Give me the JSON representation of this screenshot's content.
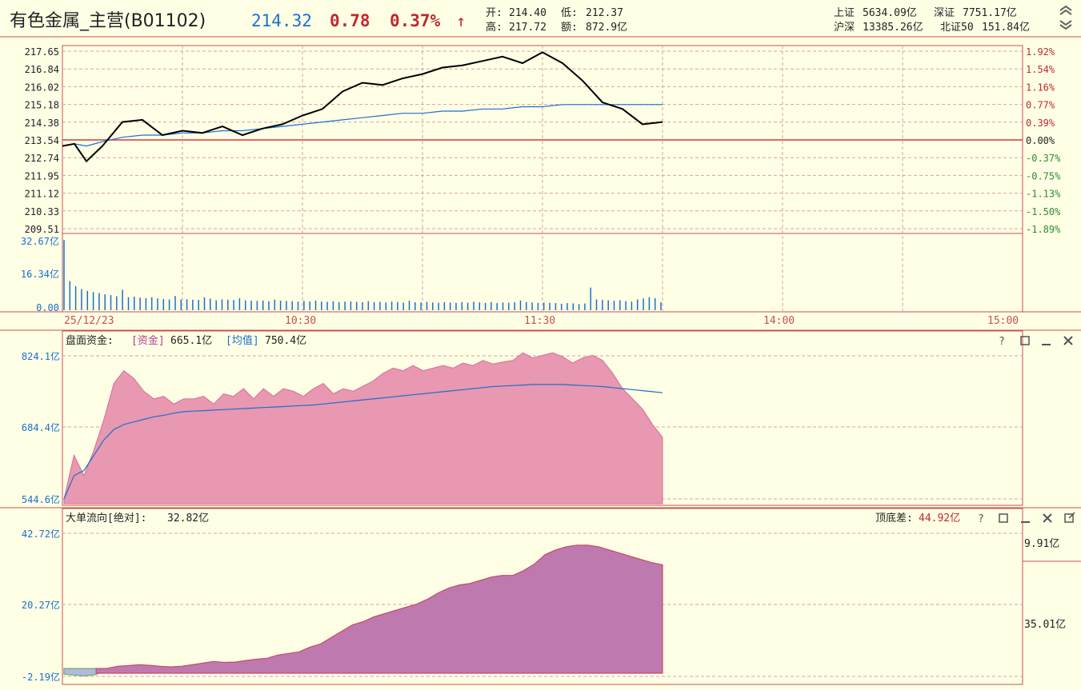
{
  "header": {
    "title": "有色金属_主营(B01102)",
    "price": "214.32",
    "change": "0.78",
    "change_pct": "0.37%",
    "arrow": "↑",
    "open_label": "开:",
    "open": "214.40",
    "low_label": "低:",
    "low": "212.37",
    "high_label": "高:",
    "high": "217.72",
    "amount_label": "额:",
    "amount": "872.9亿",
    "indices": [
      {
        "label": "上证",
        "value": "5634.09亿"
      },
      {
        "label": "深证",
        "value": "7751.17亿"
      },
      {
        "label": "沪深",
        "value": "13385.26亿"
      },
      {
        "label": "北证50",
        "value": "151.84亿"
      }
    ],
    "collapse_icon": "double-chevron-up-icon",
    "expand_icon": "double-chevron-down-icon"
  },
  "price_panel": {
    "left_ticks": [
      "217.65",
      "216.84",
      "216.02",
      "215.18",
      "214.38",
      "213.54",
      "212.74",
      "211.95",
      "211.12",
      "210.33",
      "209.51"
    ],
    "right_ticks": [
      "1.92%",
      "1.54%",
      "1.16%",
      "0.77%",
      "0.39%",
      "0.00%",
      "-0.37%",
      "-0.75%",
      "-1.13%",
      "-1.50%",
      "-1.89%"
    ],
    "prev_close": 213.54
  },
  "volume_panel": {
    "ticks": [
      "32.67亿",
      "16.34亿",
      "0.00"
    ]
  },
  "time_axis": {
    "date": "25/12/23",
    "labels": [
      "10:30",
      "11:30",
      "14:00",
      "15:00"
    ]
  },
  "fund_panel": {
    "label": "盘面资金:",
    "fund_tag": "[资金]",
    "fund_value": "665.1亿",
    "avg_tag": "[均值]",
    "avg_value": "750.4亿",
    "ticks": [
      "824.1亿",
      "684.4亿",
      "544.6亿"
    ],
    "icons": [
      "help-icon",
      "maximize-icon",
      "minimize-icon",
      "close-icon"
    ]
  },
  "bigorder_panel": {
    "label": "大单流向[绝对]:",
    "value": "32.82亿",
    "spread_label": "顶底差:",
    "spread_value": "44.92亿",
    "ticks": [
      "42.72亿",
      "20.27亿",
      "-2.19亿"
    ],
    "right_values": [
      "9.91亿",
      "35.01亿"
    ],
    "icons": [
      "help-icon",
      "maximize-icon",
      "minimize-icon",
      "close-icon",
      "popout-icon"
    ]
  },
  "colors": {
    "background": "#ffffe6",
    "grid": "#d6a3a3",
    "axis": "#c85050",
    "price_line": "#000000",
    "avg_line": "#1a6fd0",
    "up": "#c0282e",
    "down": "#2e8b2e",
    "fund_fill": "#e898b0",
    "bigorder_fill": "#be7aae"
  },
  "chart_data": [
    {
      "type": "line",
      "title": "",
      "x": [
        "09:30",
        "09:33",
        "09:36",
        "09:40",
        "09:45",
        "09:50",
        "09:55",
        "10:00",
        "10:05",
        "10:10",
        "10:15",
        "10:20",
        "10:25",
        "10:30",
        "10:35",
        "10:40",
        "10:45",
        "10:50",
        "10:55",
        "11:00",
        "11:05",
        "11:10",
        "11:15",
        "11:20",
        "11:25",
        "11:30",
        "13:05",
        "13:10",
        "13:15",
        "13:20",
        "13:25",
        "13:30"
      ],
      "series": [
        {
          "values": [
            213.3,
            213.4,
            212.6,
            213.3,
            214.4,
            214.5,
            213.8,
            214.0,
            213.9,
            214.2,
            213.8,
            214.1,
            214.3,
            214.7,
            215.0,
            215.8,
            216.2,
            216.1,
            216.4,
            216.6,
            216.9,
            217.0,
            217.2,
            217.4,
            217.1,
            217.6,
            217.1,
            216.3,
            215.3,
            215.0,
            214.3,
            214.4
          ]
        },
        {
          "values": [
            213.3,
            213.4,
            213.3,
            213.5,
            213.7,
            213.8,
            213.8,
            213.9,
            213.9,
            214.0,
            214.0,
            214.1,
            214.2,
            214.3,
            214.4,
            214.5,
            214.6,
            214.7,
            214.8,
            214.8,
            214.9,
            214.9,
            215.0,
            215.0,
            215.1,
            215.1,
            215.2,
            215.2,
            215.2,
            215.2,
            215.2,
            215.2
          ]
        }
      ],
      "ylim": [
        209.51,
        217.65
      ]
    },
    {
      "type": "bar",
      "title": "",
      "values": [
        32.6,
        13.5,
        11.2,
        9.8,
        9.0,
        8.4,
        8.0,
        7.4,
        7.0,
        6.5,
        9.5,
        6.0,
        6.3,
        5.8,
        5.6,
        6.0,
        5.5,
        5.2,
        5.0,
        6.6,
        5.0,
        5.1,
        4.9,
        4.8,
        6.0,
        5.4,
        4.6,
        5.0,
        4.9,
        4.7,
        5.5,
        4.6,
        4.4,
        4.3,
        4.5,
        4.2,
        4.9,
        4.4,
        4.3,
        4.2,
        4.0,
        4.3,
        4.1,
        4.5,
        4.0,
        3.9,
        4.2,
        3.8,
        4.0,
        4.1,
        3.9,
        3.7,
        4.2,
        3.8,
        3.9,
        3.6,
        4.0,
        3.8,
        3.5,
        4.4,
        3.7,
        3.6,
        3.9,
        3.6,
        3.5,
        3.8,
        3.6,
        3.4,
        3.7,
        3.5,
        3.9,
        3.6,
        3.4,
        3.8,
        3.3,
        3.6,
        3.5,
        3.7,
        4.5,
        3.8,
        3.6,
        3.4,
        3.6,
        3.4,
        3.3,
        3.0,
        3.3,
        3.2,
        2.9,
        3.1,
        10.5,
        5.0,
        4.8,
        4.6,
        4.4,
        4.6,
        4.2,
        4.0,
        5.0,
        5.5,
        6.0,
        5.6,
        3.8
      ],
      "ylim": [
        0,
        32.67
      ]
    },
    {
      "type": "area",
      "title": "",
      "series": [
        {
          "name": "资金",
          "values": [
            544.6,
            630,
            590,
            640,
            700,
            770,
            795,
            780,
            755,
            740,
            745,
            730,
            740,
            740,
            745,
            730,
            750,
            745,
            760,
            740,
            760,
            745,
            760,
            755,
            745,
            760,
            770,
            750,
            760,
            755,
            765,
            775,
            790,
            800,
            795,
            805,
            795,
            800,
            805,
            800,
            810,
            805,
            815,
            808,
            812,
            815,
            830,
            820,
            825,
            830,
            822,
            810,
            820,
            825,
            815,
            790,
            760,
            740,
            720,
            690,
            665
          ]
        },
        {
          "name": "均值",
          "values": [
            544.6,
            590,
            600,
            630,
            660,
            680,
            690,
            695,
            700,
            705,
            708,
            712,
            715,
            716,
            717,
            718,
            719,
            720,
            721,
            722,
            723,
            724,
            725,
            726,
            727,
            728,
            730,
            732,
            734,
            736,
            738,
            740,
            742,
            744,
            746,
            748,
            750,
            752,
            754,
            756,
            758,
            760,
            762,
            764,
            765,
            766,
            767,
            768,
            768,
            768,
            768,
            767,
            766,
            765,
            764,
            762,
            760,
            758,
            756,
            754,
            752
          ]
        }
      ],
      "ylim": [
        544.6,
        824.1
      ]
    },
    {
      "type": "area",
      "title": "",
      "series": [
        {
          "values": [
            -1.5,
            -1.8,
            -2.0,
            -1.6,
            0.2,
            1.0,
            1.2,
            1.5,
            1.3,
            1.0,
            0.8,
            1.0,
            1.5,
            2.0,
            2.5,
            2.2,
            2.3,
            2.8,
            3.2,
            3.5,
            4.5,
            5.0,
            5.5,
            7.0,
            8.0,
            10.0,
            12.0,
            14.0,
            15.0,
            16.5,
            17.5,
            18.5,
            19.5,
            20.5,
            22.0,
            24.0,
            25.5,
            26.5,
            27.0,
            28.0,
            29.0,
            29.5,
            29.5,
            31.0,
            33.0,
            36.0,
            37.5,
            38.5,
            39.0,
            39.0,
            38.5,
            37.5,
            36.5,
            35.5,
            34.5,
            33.5,
            32.8
          ]
        }
      ],
      "ylim": [
        -2.19,
        42.72
      ]
    }
  ]
}
